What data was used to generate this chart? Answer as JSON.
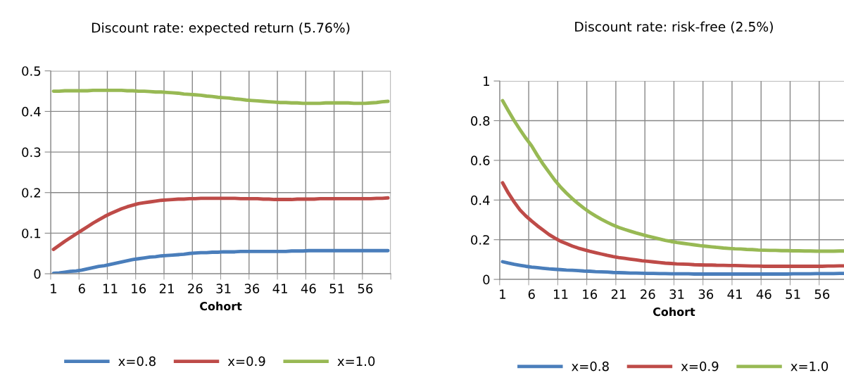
{
  "chart_data": [
    {
      "type": "line",
      "title": "Discount rate: expected return (5.76%)",
      "xlabel": "Cohort",
      "categories": [
        "1",
        null,
        null,
        null,
        null,
        "6",
        null,
        null,
        null,
        null,
        "11",
        null,
        null,
        null,
        null,
        "16",
        null,
        null,
        null,
        null,
        "21",
        null,
        null,
        null,
        null,
        "26",
        null,
        null,
        null,
        null,
        "31",
        null,
        null,
        null,
        null,
        "36",
        null,
        null,
        null,
        null,
        "41",
        null,
        null,
        null,
        null,
        "46",
        null,
        null,
        null,
        null,
        "51",
        null,
        null,
        null,
        null,
        "56",
        null,
        null,
        null,
        null
      ],
      "series": [
        {
          "name": "x=0.8",
          "color": "#4a7ebb",
          "values": [
            0.001,
            0.002,
            0.004,
            0.006,
            0.007,
            0.009,
            0.012,
            0.015,
            0.018,
            0.02,
            0.023,
            0.026,
            0.029,
            0.032,
            0.035,
            0.037,
            0.039,
            0.041,
            0.042,
            0.044,
            0.045,
            0.046,
            0.047,
            0.048,
            0.05,
            0.051,
            0.052,
            0.052,
            0.053,
            0.053,
            0.054,
            0.054,
            0.054,
            0.055,
            0.055,
            0.055,
            0.055,
            0.055,
            0.055,
            0.055,
            0.055,
            0.055,
            0.056,
            0.056,
            0.056,
            0.057,
            0.057,
            0.057,
            0.057,
            0.057,
            0.057,
            0.057,
            0.057,
            0.057,
            0.057,
            0.057,
            0.057,
            0.057,
            0.057,
            0.057
          ]
        },
        {
          "name": "x=0.9",
          "color": "#be4b48",
          "values": [
            0.06,
            0.07,
            0.08,
            0.089,
            0.098,
            0.107,
            0.116,
            0.125,
            0.133,
            0.141,
            0.148,
            0.154,
            0.16,
            0.165,
            0.169,
            0.173,
            0.175,
            0.177,
            0.179,
            0.181,
            0.182,
            0.183,
            0.184,
            0.184,
            0.185,
            0.185,
            0.186,
            0.186,
            0.186,
            0.186,
            0.186,
            0.186,
            0.186,
            0.185,
            0.185,
            0.185,
            0.185,
            0.184,
            0.184,
            0.183,
            0.183,
            0.183,
            0.183,
            0.184,
            0.184,
            0.184,
            0.184,
            0.185,
            0.185,
            0.185,
            0.185,
            0.185,
            0.185,
            0.185,
            0.185,
            0.185,
            0.185,
            0.186,
            0.186,
            0.187
          ]
        },
        {
          "name": "x=1.0",
          "color": "#98b954",
          "values": [
            0.45,
            0.45,
            0.451,
            0.451,
            0.451,
            0.451,
            0.451,
            0.452,
            0.452,
            0.452,
            0.452,
            0.452,
            0.452,
            0.451,
            0.451,
            0.45,
            0.45,
            0.449,
            0.448,
            0.448,
            0.447,
            0.446,
            0.445,
            0.443,
            0.442,
            0.441,
            0.44,
            0.438,
            0.437,
            0.435,
            0.434,
            0.433,
            0.431,
            0.43,
            0.428,
            0.427,
            0.426,
            0.425,
            0.424,
            0.423,
            0.422,
            0.422,
            0.421,
            0.421,
            0.42,
            0.42,
            0.42,
            0.42,
            0.421,
            0.421,
            0.421,
            0.421,
            0.421,
            0.42,
            0.42,
            0.42,
            0.421,
            0.422,
            0.424,
            0.425
          ]
        }
      ],
      "ylim": [
        0,
        0.5
      ],
      "yticks": [
        0,
        0.1,
        0.2,
        0.3,
        0.4,
        0.5
      ],
      "grid": true,
      "legend": "bottom",
      "marker": "none",
      "line_style": "solid"
    },
    {
      "type": "line",
      "title": "Discount rate: risk-free (2.5%)",
      "xlabel": "Cohort",
      "categories": [
        "1",
        null,
        null,
        null,
        null,
        "6",
        null,
        null,
        null,
        null,
        "11",
        null,
        null,
        null,
        null,
        "16",
        null,
        null,
        null,
        null,
        "21",
        null,
        null,
        null,
        null,
        "26",
        null,
        null,
        null,
        null,
        "31",
        null,
        null,
        null,
        null,
        "36",
        null,
        null,
        null,
        null,
        "41",
        null,
        null,
        null,
        null,
        "46",
        null,
        null,
        null,
        null,
        "51",
        null,
        null,
        null,
        null,
        "56",
        null,
        null,
        null,
        null
      ],
      "series": [
        {
          "name": "x=0.8",
          "color": "#4a7ebb",
          "values": [
            0.089,
            0.082,
            0.076,
            0.071,
            0.066,
            0.062,
            0.059,
            0.056,
            0.053,
            0.051,
            0.049,
            0.047,
            0.046,
            0.044,
            0.042,
            0.041,
            0.039,
            0.038,
            0.037,
            0.035,
            0.034,
            0.033,
            0.032,
            0.032,
            0.031,
            0.03,
            0.03,
            0.029,
            0.029,
            0.028,
            0.028,
            0.028,
            0.028,
            0.027,
            0.027,
            0.027,
            0.027,
            0.027,
            0.027,
            0.027,
            0.027,
            0.027,
            0.027,
            0.027,
            0.027,
            0.027,
            0.027,
            0.027,
            0.027,
            0.027,
            0.028,
            0.028,
            0.028,
            0.028,
            0.029,
            0.029,
            0.029,
            0.029,
            0.03,
            0.03
          ]
        },
        {
          "name": "x=0.9",
          "color": "#be4b48",
          "values": [
            0.487,
            0.435,
            0.39,
            0.35,
            0.32,
            0.294,
            0.27,
            0.248,
            0.226,
            0.208,
            0.192,
            0.18,
            0.168,
            0.158,
            0.15,
            0.142,
            0.135,
            0.128,
            0.121,
            0.115,
            0.11,
            0.106,
            0.102,
            0.098,
            0.094,
            0.091,
            0.088,
            0.085,
            0.082,
            0.08,
            0.078,
            0.077,
            0.076,
            0.074,
            0.073,
            0.072,
            0.072,
            0.071,
            0.071,
            0.07,
            0.07,
            0.069,
            0.068,
            0.067,
            0.067,
            0.066,
            0.066,
            0.066,
            0.066,
            0.066,
            0.066,
            0.066,
            0.066,
            0.066,
            0.066,
            0.066,
            0.067,
            0.067,
            0.068,
            0.068
          ]
        },
        {
          "name": "x=1.0",
          "color": "#98b954",
          "values": [
            0.901,
            0.85,
            0.8,
            0.755,
            0.712,
            0.673,
            0.625,
            0.58,
            0.54,
            0.5,
            0.465,
            0.435,
            0.407,
            0.382,
            0.359,
            0.338,
            0.32,
            0.303,
            0.288,
            0.274,
            0.262,
            0.252,
            0.243,
            0.234,
            0.226,
            0.218,
            0.211,
            0.204,
            0.197,
            0.191,
            0.186,
            0.182,
            0.178,
            0.174,
            0.17,
            0.167,
            0.164,
            0.161,
            0.158,
            0.156,
            0.154,
            0.153,
            0.151,
            0.15,
            0.148,
            0.147,
            0.146,
            0.146,
            0.145,
            0.145,
            0.144,
            0.144,
            0.143,
            0.143,
            0.142,
            0.142,
            0.142,
            0.142,
            0.143,
            0.143
          ]
        }
      ],
      "ylim": [
        0,
        1
      ],
      "yticks": [
        0,
        0.2,
        0.4,
        0.6,
        0.8,
        1
      ],
      "grid": true,
      "legend": "bottom",
      "marker": "none",
      "line_style": "solid"
    }
  ]
}
